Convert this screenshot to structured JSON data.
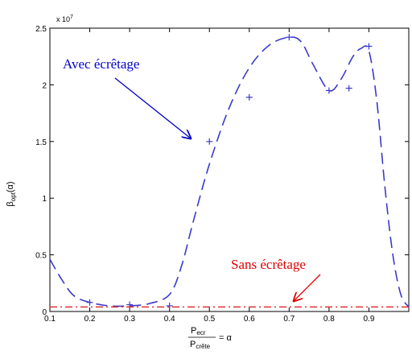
{
  "chart_data": {
    "type": "line",
    "multiplier_label": "x 10",
    "multiplier_exp": "7",
    "ylabel": {
      "base": "β",
      "sub": "opt",
      "arg": "(α)"
    },
    "xlabel": {
      "numerator_base": "P",
      "numerator_sub": "ecr",
      "denominator_base": "P",
      "denominator_sub": "crête",
      "equals": "= α"
    },
    "xlim": [
      0.1,
      1.0
    ],
    "ylim": [
      0,
      2.5
    ],
    "xticks": [
      0.1,
      0.2,
      0.3,
      0.4,
      0.5,
      0.6,
      0.7,
      0.8,
      0.9
    ],
    "yticks": [
      0,
      0.5,
      1,
      1.5,
      2,
      2.5
    ],
    "series": [
      {
        "style": "dashed-curve",
        "color": "#3a3acc",
        "x": [
          0.1,
          0.13,
          0.16,
          0.2,
          0.25,
          0.3,
          0.35,
          0.4,
          0.43,
          0.46,
          0.5,
          0.55,
          0.6,
          0.65,
          0.7,
          0.73,
          0.76,
          0.8,
          0.83,
          0.86,
          0.88,
          0.9,
          0.92,
          0.94,
          0.96,
          0.98,
          1.0
        ],
        "y": [
          0.46,
          0.28,
          0.14,
          0.08,
          0.05,
          0.05,
          0.07,
          0.15,
          0.4,
          0.8,
          1.3,
          1.8,
          2.15,
          2.35,
          2.42,
          2.38,
          2.18,
          1.95,
          2.05,
          2.25,
          2.32,
          2.3,
          1.85,
          1.1,
          0.5,
          0.15,
          0.04
        ]
      },
      {
        "style": "markers-plus",
        "color": "#3a3acc",
        "x": [
          0.2,
          0.3,
          0.4,
          0.5,
          0.6,
          0.7,
          0.8,
          0.85,
          0.9
        ],
        "y": [
          0.08,
          0.06,
          0.05,
          1.5,
          1.89,
          2.42,
          1.95,
          1.97,
          2.34
        ]
      },
      {
        "style": "dashdot-line",
        "color": "#e03030",
        "x": [
          0.1,
          1.0
        ],
        "y": [
          0.04,
          0.04
        ]
      }
    ],
    "annotations": [
      {
        "text": "Avec écrêtage",
        "color": "#0000cc"
      },
      {
        "text": "Sans écrêtage",
        "color": "#dd0000"
      }
    ],
    "grid": false
  }
}
